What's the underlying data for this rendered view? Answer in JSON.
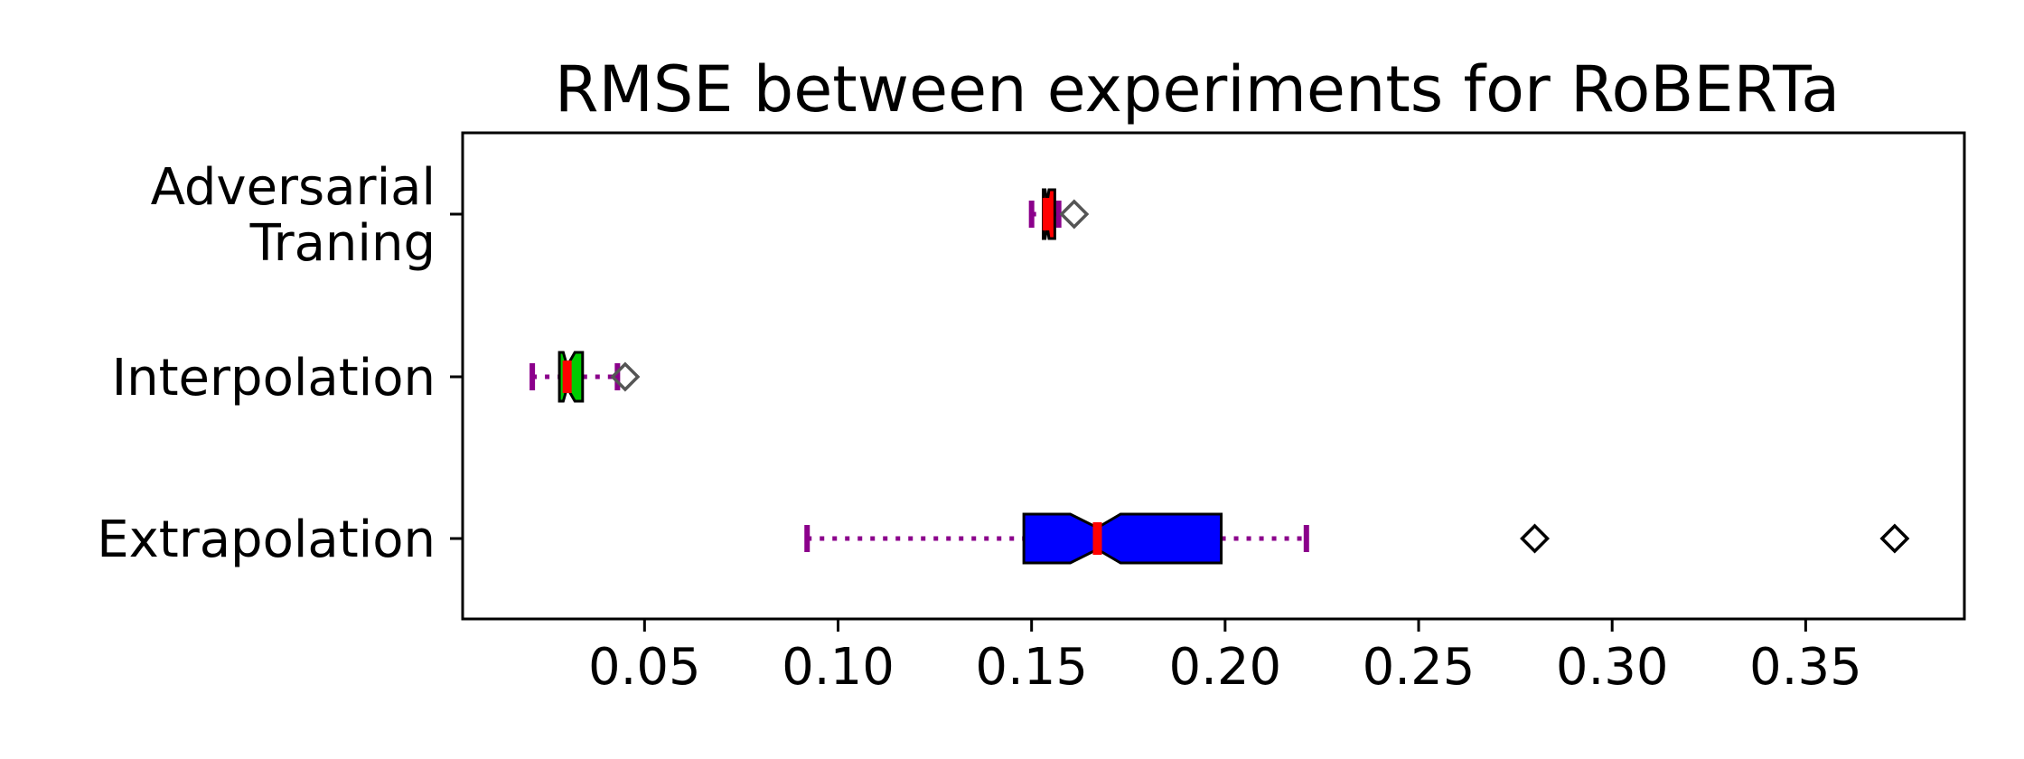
{
  "chart_data": {
    "type": "boxplot",
    "title": "RMSE between experiments for RoBERTa",
    "xlabel": "",
    "ylabel": "",
    "xlim": [
      0.003,
      0.391
    ],
    "xticks": [
      "0.05",
      "0.10",
      "0.15",
      "0.20",
      "0.25",
      "0.30",
      "0.35"
    ],
    "orientation": "horizontal",
    "notched": true,
    "grid": false,
    "series": [
      {
        "label_lines": [
          "Adversarial",
          "Traning"
        ],
        "whisker_low": 0.15,
        "q1": 0.153,
        "median": 0.154,
        "q3": 0.156,
        "whisker_high": 0.157,
        "notch_low": 0.1535,
        "notch_high": 0.1545,
        "outliers": [
          0.161
        ],
        "box_color": "#ff0000",
        "outlier_color": "#555555"
      },
      {
        "label_lines": [
          "Interpolation"
        ],
        "whisker_low": 0.021,
        "q1": 0.028,
        "median": 0.03,
        "q3": 0.034,
        "whisker_high": 0.043,
        "notch_low": 0.029,
        "notch_high": 0.032,
        "outliers": [
          0.045
        ],
        "box_color": "#00cc00",
        "outlier_color": "#555555"
      },
      {
        "label_lines": [
          "Extrapolation"
        ],
        "whisker_low": 0.092,
        "q1": 0.148,
        "median": 0.167,
        "q3": 0.199,
        "whisker_high": 0.221,
        "notch_low": 0.16,
        "notch_high": 0.173,
        "outliers": [
          0.28,
          0.373
        ],
        "box_color": "#0000ff",
        "outlier_color": "#000000"
      }
    ],
    "colors": {
      "whisker": "#8b008b",
      "median": "#ff0000",
      "box_edge": "#000000",
      "axis": "#000000"
    }
  }
}
